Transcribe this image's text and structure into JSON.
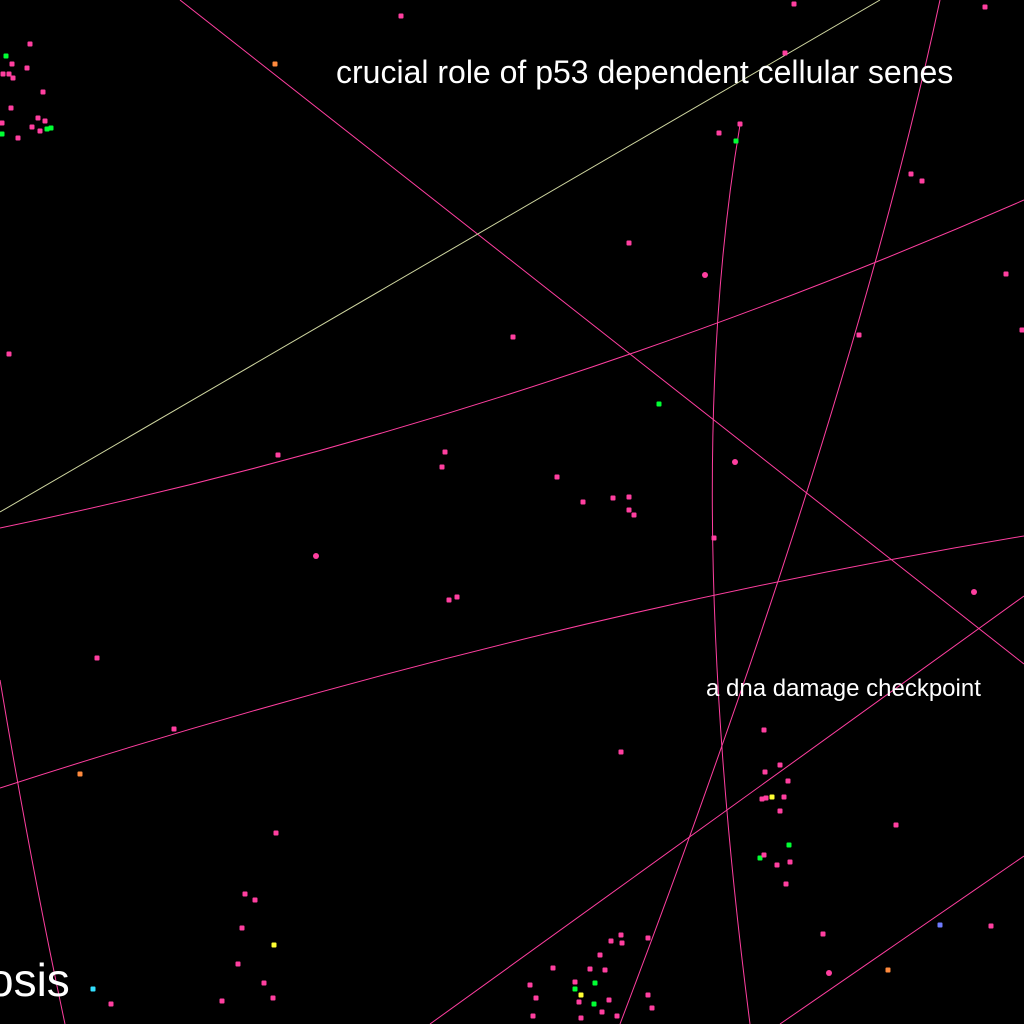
{
  "labels": {
    "top": "crucial role of p53 dependent cellular senes",
    "middle": "a dna damage checkpoint",
    "bottom": "osis"
  },
  "colors": {
    "background": "#000000",
    "text": "#ffffff",
    "edge_primary": "#ff3fa0",
    "edge_secondary": "#cfd6a0",
    "node_primary": "#ff3fa0",
    "node_green": "#00ff33",
    "node_orange": "#ff8a3d",
    "node_yellow": "#ffff33",
    "node_cyan": "#33e0ff",
    "node_blue": "#6f7bff"
  }
}
